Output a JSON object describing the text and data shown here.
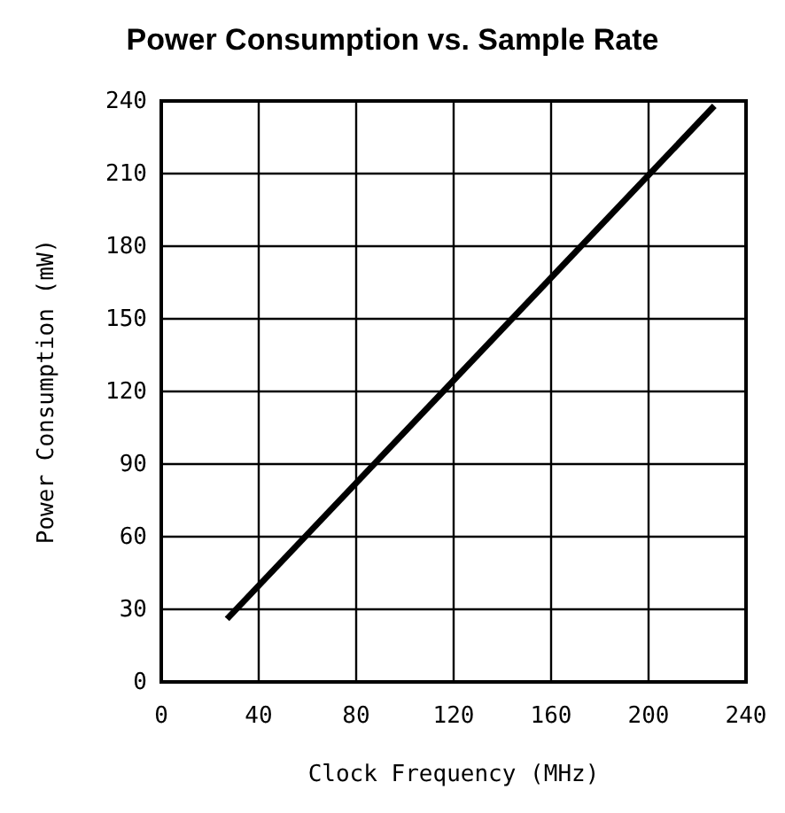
{
  "chart_data": {
    "type": "line",
    "title": "Power Consumption vs. Sample Rate",
    "xlabel": "Clock Frequency (MHz)",
    "ylabel": "Power Consumption (mW)",
    "x": [
      27,
      227
    ],
    "series": [
      {
        "color": "#000000",
        "values": [
          26,
          238
        ]
      }
    ],
    "xlim": [
      0,
      240
    ],
    "xticks": [
      0,
      40,
      80,
      120,
      160,
      200,
      240
    ],
    "ylim": [
      0,
      240
    ],
    "yticks": [
      0,
      30,
      60,
      90,
      120,
      150,
      180,
      210,
      240
    ],
    "grid": true,
    "line_style": "solid",
    "marker": "none"
  }
}
